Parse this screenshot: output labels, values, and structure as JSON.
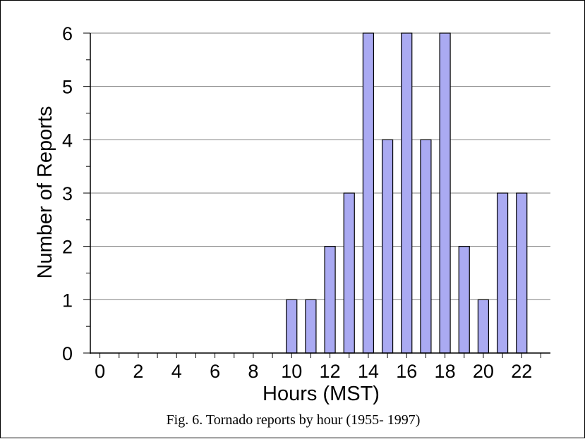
{
  "caption": "Fig. 6. Tornado reports by hour (1955- 1997)",
  "colors": {
    "bar_fill": "#aaaaf2",
    "bar_stroke": "#000000",
    "grid": "#808080",
    "background": "#ffffff"
  },
  "chart_data": {
    "type": "bar",
    "title": "",
    "xlabel": "Hours (MST)",
    "ylabel": "Number of Reports",
    "categories": [
      "0",
      "1",
      "2",
      "3",
      "4",
      "5",
      "6",
      "7",
      "8",
      "9",
      "10",
      "11",
      "12",
      "13",
      "14",
      "15",
      "16",
      "17",
      "18",
      "19",
      "20",
      "21",
      "22",
      "23"
    ],
    "values": [
      0,
      0,
      0,
      0,
      0,
      0,
      0,
      0,
      0,
      0,
      1,
      1,
      2,
      3,
      6,
      4,
      6,
      4,
      6,
      2,
      1,
      3,
      3,
      0
    ],
    "x_tick_labels": [
      "0",
      "2",
      "4",
      "6",
      "8",
      "10",
      "12",
      "14",
      "16",
      "18",
      "20",
      "22"
    ],
    "y_tick_labels": [
      "0",
      "1",
      "2",
      "3",
      "4",
      "5",
      "6"
    ],
    "ylim": [
      0,
      6
    ],
    "grid": true,
    "legend": false
  }
}
